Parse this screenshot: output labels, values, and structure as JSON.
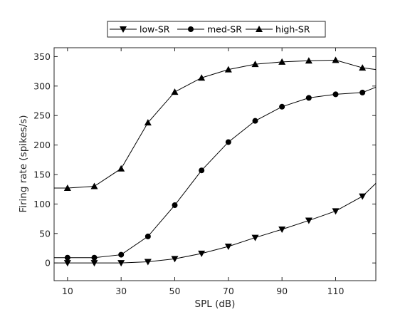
{
  "chart_data": {
    "type": "line",
    "xlabel": "SPL (dB)",
    "ylabel": "Firing rate (spikes/s)",
    "xlim": [
      5,
      125
    ],
    "ylim": [
      -30,
      365
    ],
    "xticks": [
      10,
      30,
      50,
      70,
      90,
      110
    ],
    "yticks": [
      0,
      50,
      100,
      150,
      200,
      250,
      300,
      350
    ],
    "grid": false,
    "legend_position": "top-center, outside plot, horizontal",
    "x": [
      5,
      10,
      20,
      30,
      40,
      50,
      60,
      70,
      80,
      90,
      100,
      110,
      120,
      125
    ],
    "series": [
      {
        "name": "low-SR",
        "marker": "triangle-down",
        "values": [
          0,
          0,
          0,
          0,
          2,
          7,
          16,
          28,
          43,
          57,
          72,
          88,
          113,
          135
        ],
        "marker_x": [
          10,
          20,
          30,
          40,
          50,
          60,
          70,
          80,
          90,
          100,
          110,
          120
        ]
      },
      {
        "name": "med-SR",
        "marker": "circle",
        "values": [
          9,
          9,
          9,
          14,
          45,
          98,
          157,
          205,
          241,
          265,
          280,
          286,
          289,
          298
        ],
        "marker_x": [
          10,
          20,
          30,
          40,
          50,
          60,
          70,
          80,
          90,
          100,
          110,
          120
        ]
      },
      {
        "name": "high-SR",
        "marker": "triangle-up",
        "values": [
          127,
          127,
          130,
          160,
          238,
          290,
          314,
          328,
          337,
          341,
          343,
          344,
          331,
          328
        ],
        "marker_x": [
          10,
          20,
          30,
          40,
          50,
          60,
          70,
          80,
          90,
          100,
          110,
          120
        ]
      }
    ]
  }
}
